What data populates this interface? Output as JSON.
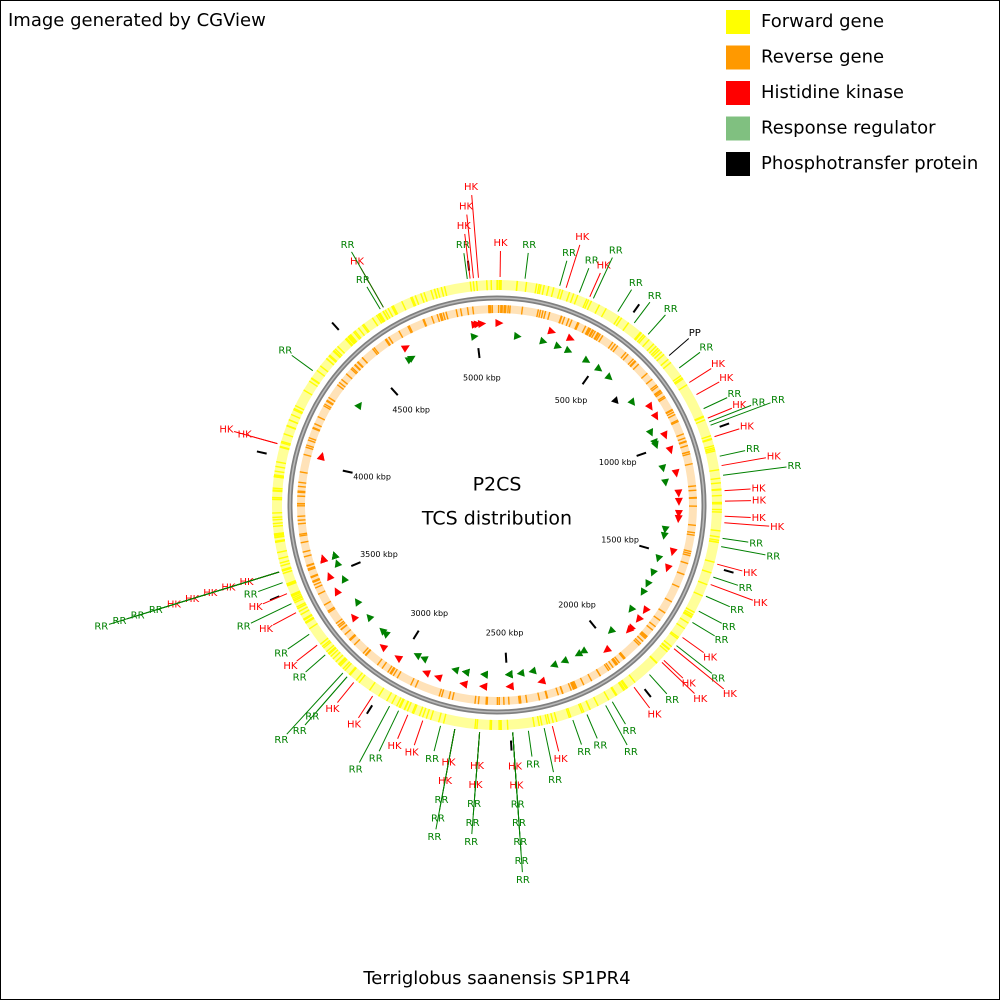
{
  "header": {
    "title": "Image generated by CGView"
  },
  "legend": [
    {
      "label": "Forward gene",
      "color": "#ffff00"
    },
    {
      "label": "Reverse gene",
      "color": "#ff9900"
    },
    {
      "label": "Histidine kinase",
      "color": "#ff0000"
    },
    {
      "label": "Response regulator",
      "color": "#80c080"
    },
    {
      "label": "Phosphotransfer protein",
      "color": "#000000"
    }
  ],
  "map": {
    "title": "P2CS",
    "subtitle": "TCS distribution",
    "caption": "Terriglobus saanensis SP1PR4",
    "xlim": [
      0,
      5096
    ],
    "xticks": [
      {
        "value": 500,
        "label": "500 kbp"
      },
      {
        "value": 1000,
        "label": "1000 kbp"
      },
      {
        "value": 1500,
        "label": "1500 kbp"
      },
      {
        "value": 2000,
        "label": "2000 kbp"
      },
      {
        "value": 2500,
        "label": "2500 kbp"
      },
      {
        "value": 3000,
        "label": "3000 kbp"
      },
      {
        "value": 3500,
        "label": "3500 kbp"
      },
      {
        "value": 4000,
        "label": "4000 kbp"
      },
      {
        "value": 4500,
        "label": "4500 kbp"
      },
      {
        "value": 5000,
        "label": "5000 kbp"
      }
    ],
    "features": [
      {
        "label": "HK",
        "color": "#ff0000",
        "positions_kbp": [
          11,
          250,
          340,
          814,
          864,
          957,
          1027,
          1133,
          1223,
          1260,
          1314,
          1337,
          1487,
          1563,
          1777,
          1827,
          1882,
          1892,
          2025,
          2349,
          2492,
          2492,
          2610,
          2610,
          2699,
          2699,
          2817,
          2874,
          3016,
          3099,
          3285,
          3423,
          3498,
          3580,
          3580,
          3580,
          3580,
          3580,
          4043,
          4043,
          4673,
          5000,
          5012,
          5030
        ]
      },
      {
        "label": "RR",
        "color": "#008000",
        "positions_kbp": [
          100,
          226,
          300,
          354,
          453,
          524,
          588,
          751,
          920,
          971,
          984,
          1099,
          1168,
          1393,
          1423,
          1535,
          1608,
          1667,
          1713,
          1813,
          1954,
          2118,
          2145,
          2219,
          2273,
          2379,
          2436,
          2492,
          2492,
          2492,
          2492,
          2492,
          2610,
          2610,
          2610,
          2699,
          2699,
          2699,
          2751,
          2910,
          2946,
          3130,
          3130,
          3150,
          3240,
          3333,
          3459,
          3540,
          3580,
          3580,
          3580,
          3580,
          4333,
          4660,
          4673,
          4990
        ]
      },
      {
        "label": "PP",
        "color": "#000000",
        "positions_kbp": [
          694
        ]
      }
    ]
  }
}
